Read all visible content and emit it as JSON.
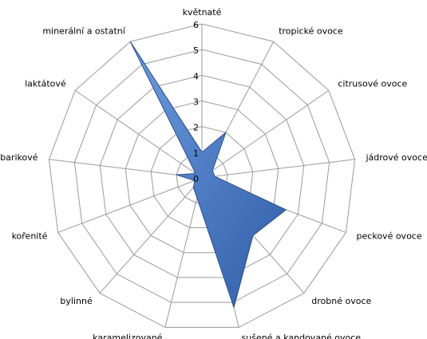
{
  "chart_data": {
    "type": "radar",
    "categories": [
      "květnaté",
      "tropické ovoce",
      "citrusové ovoce",
      "jádrové ovoce",
      "peckové ovoce",
      "drobné ovoce",
      "sušené a kandované ovoce",
      "karamelizované",
      "bylinné",
      "kořenité",
      "barikové",
      "laktátové",
      "minerální a ostatní"
    ],
    "values": [
      1,
      2,
      0.5,
      0.5,
      3.5,
      3,
      5.2,
      0.8,
      0.5,
      0.3,
      1,
      0.3,
      6
    ],
    "color": "#4a7ebb",
    "ylim": [
      0,
      6
    ],
    "yticks": [
      0,
      1,
      2,
      3,
      4,
      5,
      6
    ],
    "grid": true
  }
}
